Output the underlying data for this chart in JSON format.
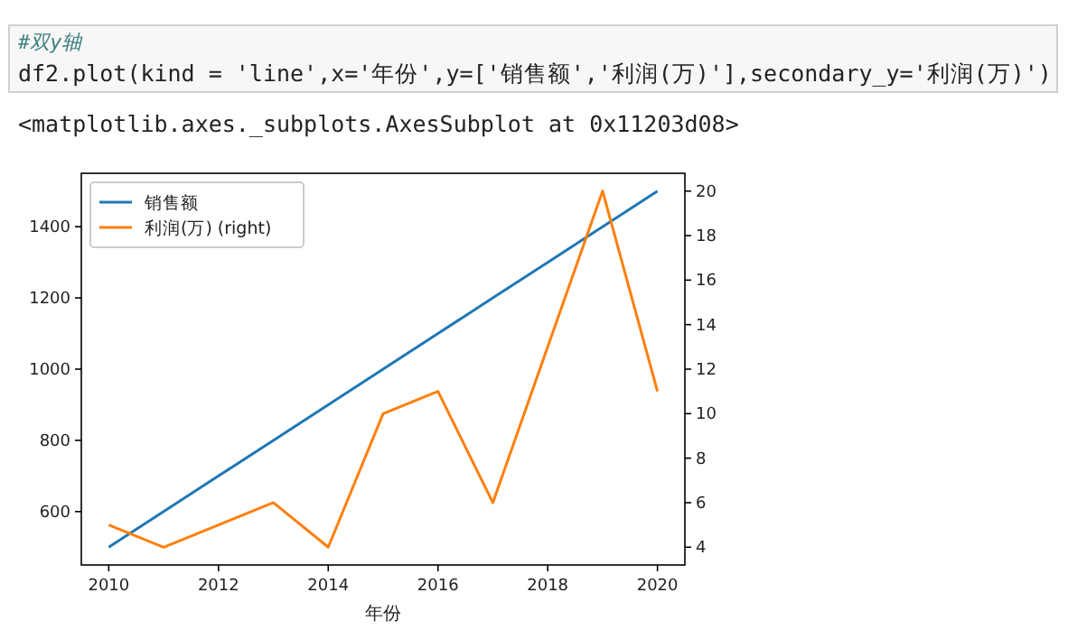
{
  "chart_data": {
    "type": "line",
    "annotations": [
      "#双y轴",
      "df2.plot(kind = 'line',x='年份',y=['销售额','利润(万)'],secondary_y='利润(万)')",
      "<matplotlib.axes._subplots.AxesSubplot at 0x11203d08>"
    ],
    "xlabel": "年份",
    "x": [
      2010,
      2011,
      2012,
      2013,
      2014,
      2015,
      2016,
      2017,
      2018,
      2019,
      2020
    ],
    "series": [
      {
        "name": "销售额",
        "color": "#1f77b4",
        "values": [
          500,
          600,
          700,
          800,
          900,
          1000,
          1100,
          1200,
          1300,
          1400,
          1500
        ]
      },
      {
        "name": "利润(万) (right)",
        "color": "#ff7f0e",
        "axis": "y2",
        "values": [
          5,
          4,
          5,
          6,
          4,
          10,
          11,
          6,
          13,
          20,
          11
        ]
      }
    ],
    "xlim": [
      2009.5,
      2020.5
    ],
    "ylim": [
      450,
      1550
    ],
    "y2lim": [
      3.2,
      20.8
    ],
    "xticks": [
      2010,
      2012,
      2014,
      2016,
      2018,
      2020
    ],
    "yticks": [
      600,
      800,
      1000,
      1200,
      1400
    ],
    "y2ticks": [
      4,
      6,
      8,
      10,
      12,
      14,
      16,
      18,
      20
    ],
    "legend": "top left",
    "line_style": "solid",
    "marker": "none",
    "grid": false
  }
}
